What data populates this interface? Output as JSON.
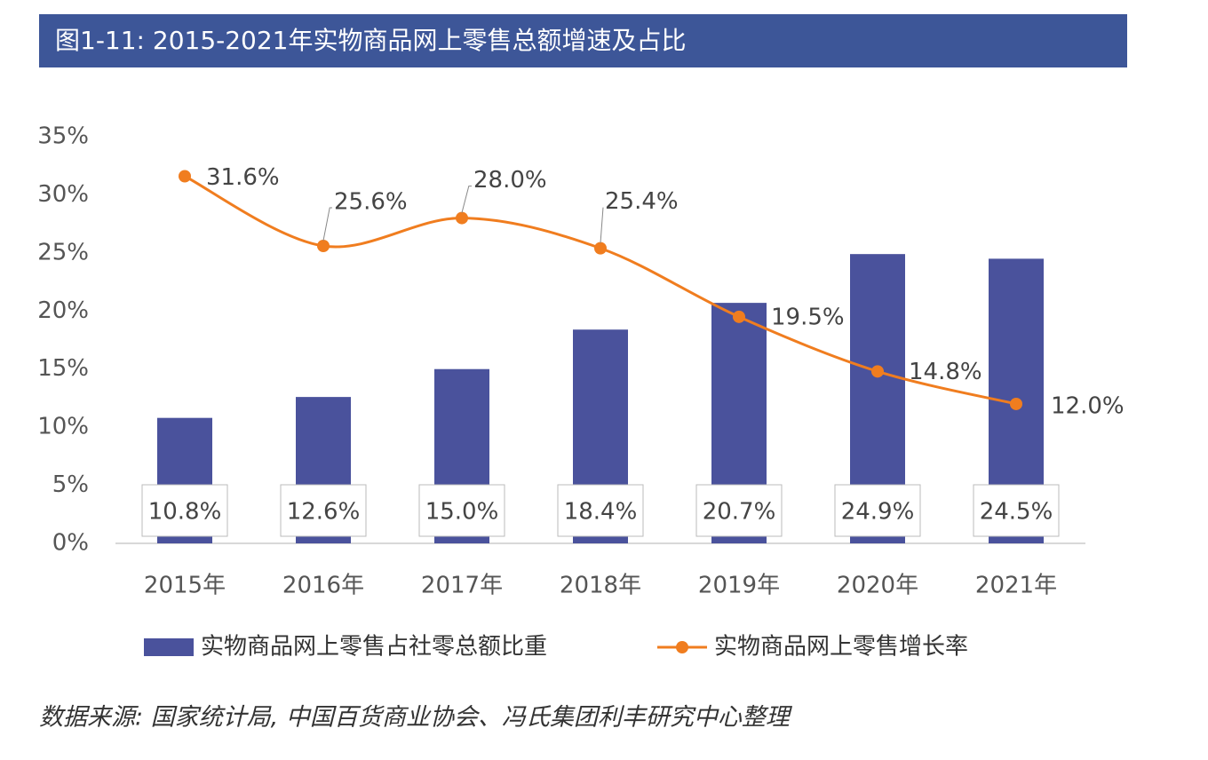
{
  "chart_data": {
    "type": "combo",
    "title": "图1-11: 2015-2021年实物商品网上零售总额增速及占比",
    "source": "数据来源: 国家统计局, 中国百货商业协会、冯氏集团利丰研究中心整理",
    "categories": [
      "2015年",
      "2016年",
      "2017年",
      "2018年",
      "2019年",
      "2020年",
      "2021年"
    ],
    "series": [
      {
        "name": "实物商品网上零售占社零总额比重",
        "type": "bar",
        "color": "#4a529c",
        "values": [
          10.8,
          12.6,
          15.0,
          18.4,
          20.7,
          24.9,
          24.5
        ],
        "value_labels": [
          "10.8%",
          "12.6%",
          "15.0%",
          "18.4%",
          "20.7%",
          "24.9%",
          "24.5%"
        ]
      },
      {
        "name": "实物商品网上零售增长率",
        "type": "line",
        "color": "#f07d1f",
        "values": [
          31.6,
          25.6,
          28.0,
          25.4,
          19.5,
          14.8,
          12.0
        ],
        "value_labels": [
          "31.6%",
          "25.6%",
          "28.0%",
          "25.4%",
          "19.5%",
          "14.8%",
          "12.0%"
        ]
      }
    ],
    "ylim": [
      0,
      35
    ],
    "yticks": [
      {
        "value": 0,
        "label": "0%"
      },
      {
        "value": 5,
        "label": "5%"
      },
      {
        "value": 10,
        "label": "10%"
      },
      {
        "value": 15,
        "label": "15%"
      },
      {
        "value": 20,
        "label": "20%"
      },
      {
        "value": 25,
        "label": "25%"
      },
      {
        "value": 30,
        "label": "30%"
      },
      {
        "value": 35,
        "label": "35%"
      }
    ]
  }
}
